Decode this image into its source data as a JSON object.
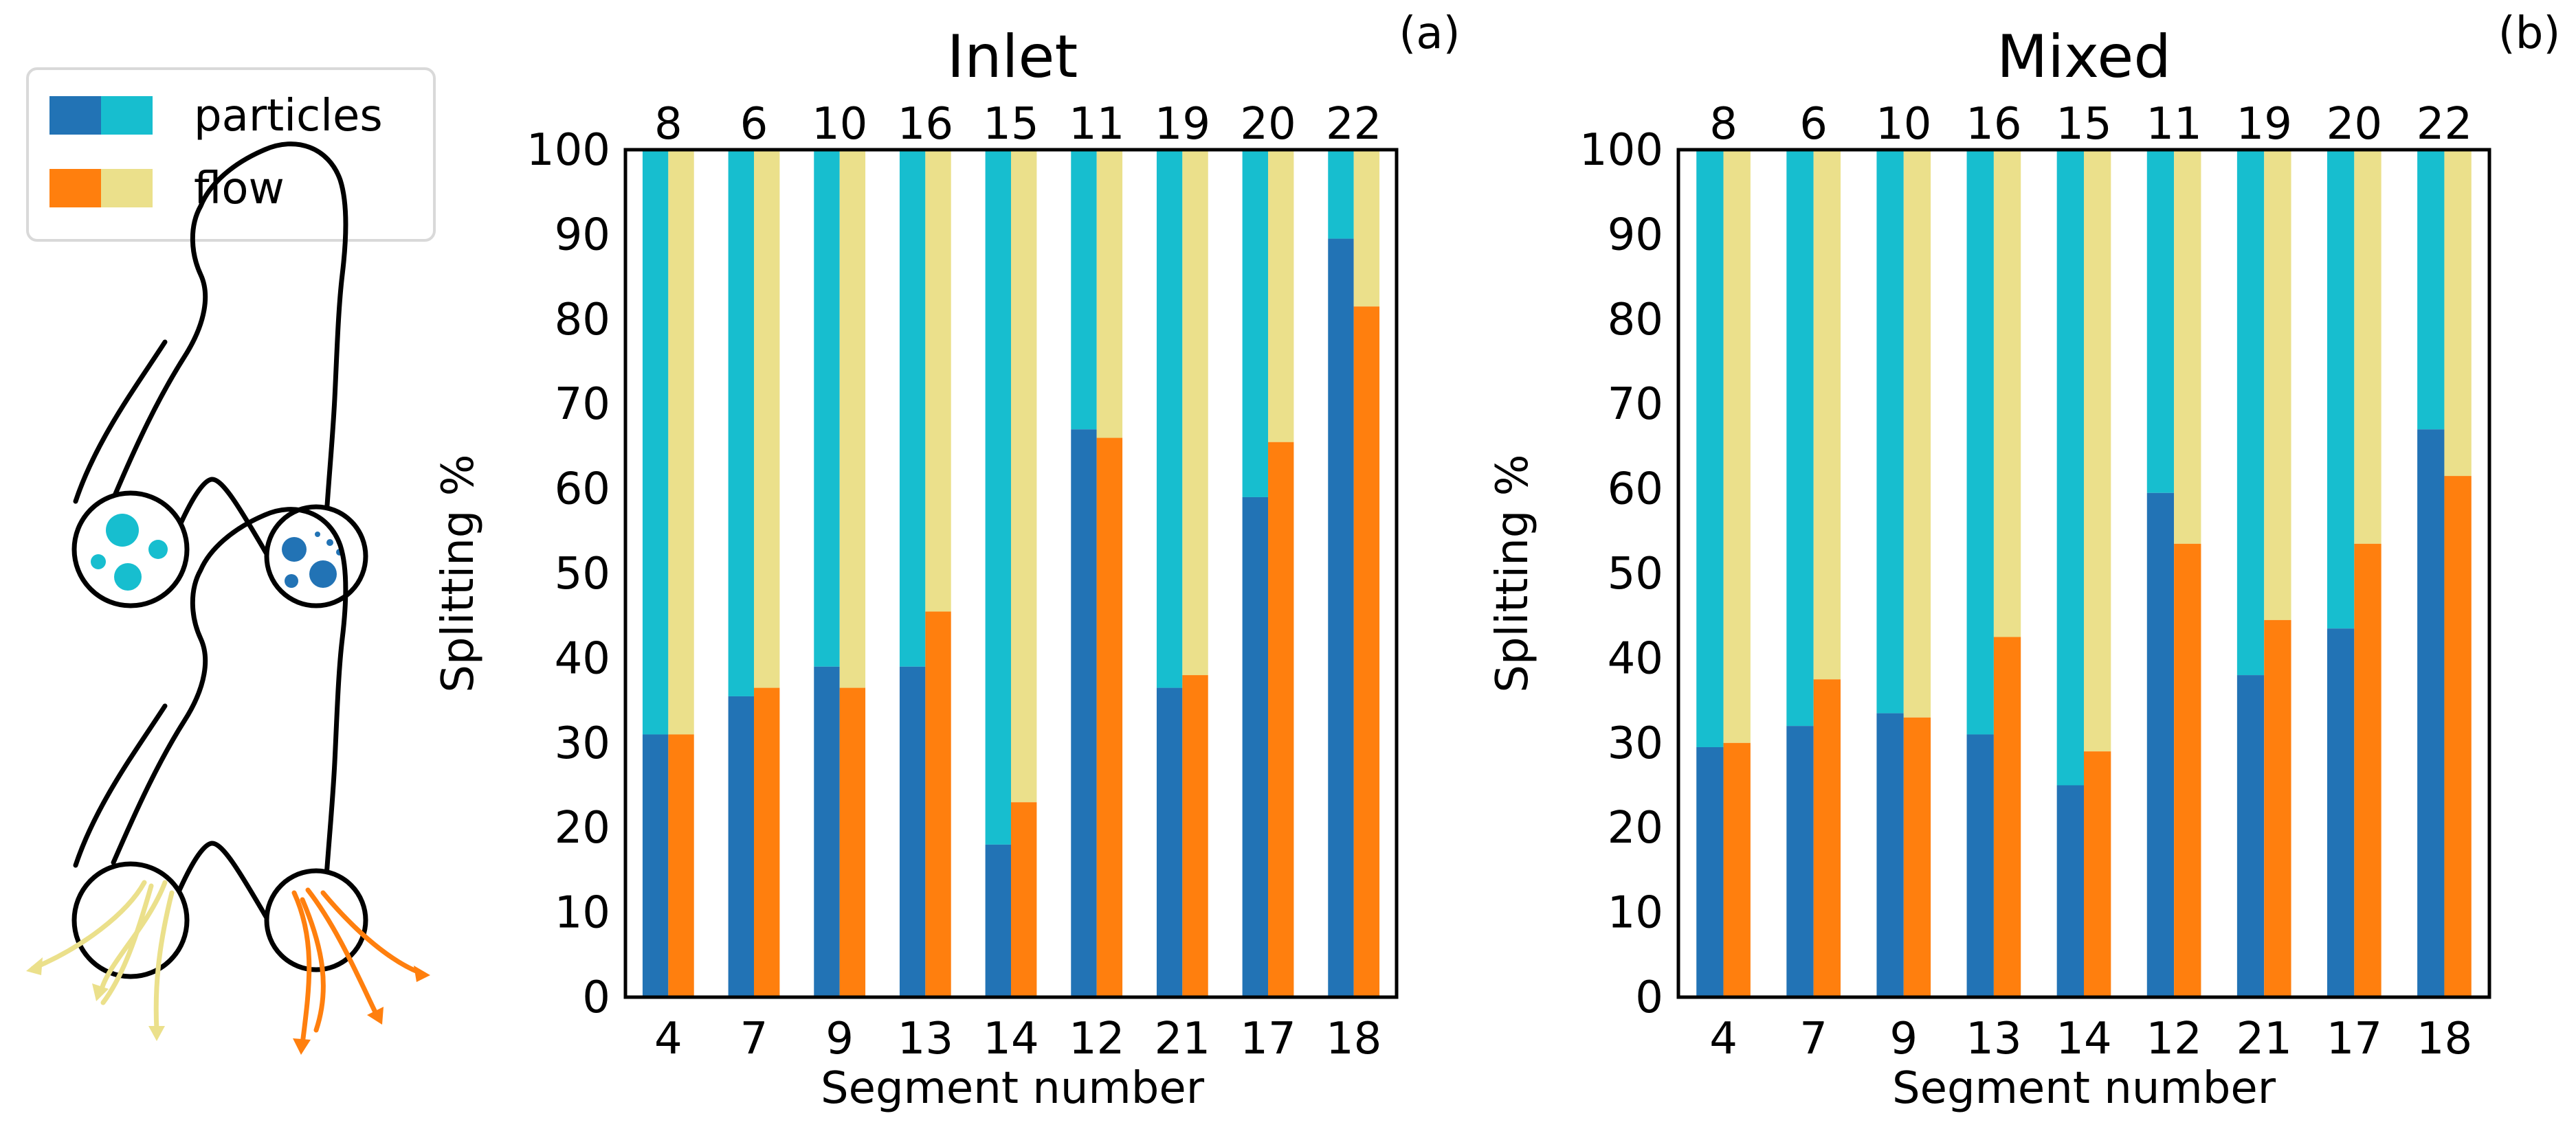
{
  "legend": {
    "particles_label": "particles",
    "flow_label": "flow"
  },
  "colors": {
    "particles_left": "#2273b5",
    "particles_right": "#17becf",
    "flow_left": "#ff7f0e",
    "flow_right": "#ebe08b",
    "outline": "#000000"
  },
  "chart_data": [
    {
      "type": "bar",
      "panel_label": "(a)",
      "title": "Inlet",
      "xlabel": "Segment number",
      "ylabel": "Splitting %",
      "ylim": [
        0,
        100
      ],
      "yticks": [
        0,
        10,
        20,
        30,
        40,
        50,
        60,
        70,
        80,
        90,
        100
      ],
      "categories": [
        "4",
        "7",
        "9",
        "13",
        "14",
        "12",
        "21",
        "17",
        "18"
      ],
      "top_categories": [
        "8",
        "6",
        "10",
        "16",
        "15",
        "11",
        "19",
        "20",
        "22"
      ],
      "series": [
        {
          "name": "particles",
          "values": [
            31,
            35.5,
            39,
            39,
            18,
            67,
            36.5,
            59,
            89.5
          ]
        },
        {
          "name": "flow",
          "values": [
            31,
            36.5,
            36.5,
            45.5,
            23,
            66,
            38,
            65.5,
            81.5
          ]
        }
      ],
      "stacked_complement_to": 100
    },
    {
      "type": "bar",
      "panel_label": "(b)",
      "title": "Mixed",
      "xlabel": "Segment number",
      "ylabel": "Splitting %",
      "ylim": [
        0,
        100
      ],
      "yticks": [
        0,
        10,
        20,
        30,
        40,
        50,
        60,
        70,
        80,
        90,
        100
      ],
      "categories": [
        "4",
        "7",
        "9",
        "13",
        "14",
        "12",
        "21",
        "17",
        "18"
      ],
      "top_categories": [
        "8",
        "6",
        "10",
        "16",
        "15",
        "11",
        "19",
        "20",
        "22"
      ],
      "series": [
        {
          "name": "particles",
          "values": [
            29.5,
            32,
            33.5,
            31,
            25,
            59.5,
            38,
            43.5,
            67
          ]
        },
        {
          "name": "flow",
          "values": [
            30,
            37.5,
            33,
            42.5,
            29,
            53.5,
            44.5,
            53.5,
            61.5
          ]
        }
      ],
      "stacked_complement_to": 100
    }
  ]
}
